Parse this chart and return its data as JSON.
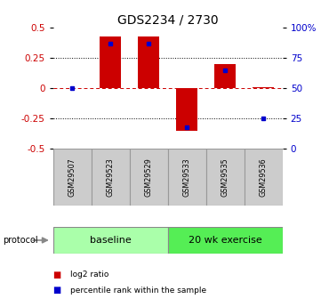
{
  "title": "GDS2234 / 2730",
  "samples": [
    "GSM29507",
    "GSM29523",
    "GSM29529",
    "GSM29533",
    "GSM29535",
    "GSM29536"
  ],
  "log2_ratio": [
    0.0,
    0.43,
    0.43,
    -0.35,
    0.2,
    0.01
  ],
  "percentile_rank": [
    50,
    87,
    87,
    18,
    65,
    25
  ],
  "groups": [
    {
      "label": "baseline",
      "start": 0,
      "end": 3,
      "color": "#aaffaa"
    },
    {
      "label": "20 wk exercise",
      "start": 3,
      "end": 6,
      "color": "#55ee55"
    }
  ],
  "bar_color": "#cc0000",
  "percentile_color": "#0000cc",
  "ylim_left": [
    -0.5,
    0.5
  ],
  "ylim_right": [
    0,
    100
  ],
  "yticks_left": [
    -0.5,
    -0.25,
    0,
    0.25,
    0.5
  ],
  "yticks_right": [
    0,
    25,
    50,
    75,
    100
  ],
  "ytick_labels_right": [
    "0",
    "25",
    "50",
    "75",
    "100%"
  ],
  "hline_color": "#cc0000",
  "dotted_color": "#000000",
  "bar_width": 0.55,
  "legend_items": [
    "log2 ratio",
    "percentile rank within the sample"
  ],
  "legend_colors": [
    "#cc0000",
    "#0000cc"
  ],
  "protocol_label": "protocol",
  "left_tick_color": "#cc0000",
  "right_tick_color": "#0000cc",
  "bg_color": "#ffffff",
  "sample_box_color": "#cccccc"
}
